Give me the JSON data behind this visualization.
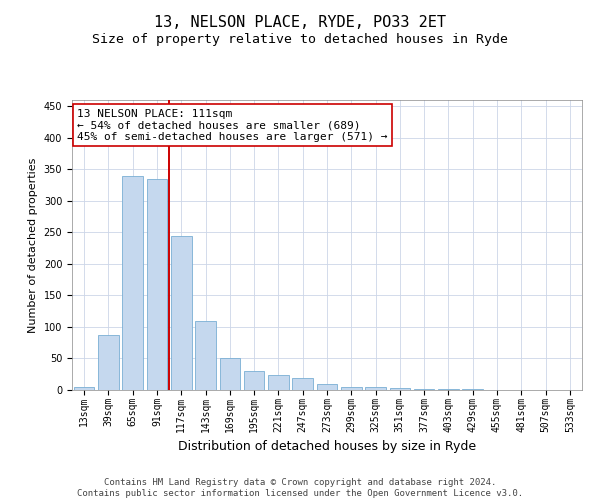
{
  "title": "13, NELSON PLACE, RYDE, PO33 2ET",
  "subtitle": "Size of property relative to detached houses in Ryde",
  "xlabel": "Distribution of detached houses by size in Ryde",
  "ylabel": "Number of detached properties",
  "categories": [
    "13sqm",
    "39sqm",
    "65sqm",
    "91sqm",
    "117sqm",
    "143sqm",
    "169sqm",
    "195sqm",
    "221sqm",
    "247sqm",
    "273sqm",
    "299sqm",
    "325sqm",
    "351sqm",
    "377sqm",
    "403sqm",
    "429sqm",
    "455sqm",
    "481sqm",
    "507sqm",
    "533sqm"
  ],
  "values": [
    5,
    88,
    340,
    335,
    245,
    110,
    50,
    30,
    24,
    19,
    9,
    5,
    4,
    3,
    2,
    1,
    1,
    0,
    0,
    0,
    0
  ],
  "bar_color": "#c5d8ee",
  "bar_edge_color": "#7aafd4",
  "vline_color": "#cc0000",
  "vline_x_index": 4,
  "annotation_text": "13 NELSON PLACE: 111sqm\n← 54% of detached houses are smaller (689)\n45% of semi-detached houses are larger (571) →",
  "annotation_box_facecolor": "#ffffff",
  "annotation_box_edgecolor": "#cc0000",
  "ylim": [
    0,
    460
  ],
  "yticks": [
    0,
    50,
    100,
    150,
    200,
    250,
    300,
    350,
    400,
    450
  ],
  "grid_color": "#ccd6e8",
  "background_color": "#ffffff",
  "footer_text": "Contains HM Land Registry data © Crown copyright and database right 2024.\nContains public sector information licensed under the Open Government Licence v3.0.",
  "title_fontsize": 11,
  "subtitle_fontsize": 9.5,
  "xlabel_fontsize": 9,
  "ylabel_fontsize": 8,
  "tick_fontsize": 7,
  "annotation_fontsize": 8,
  "footer_fontsize": 6.5
}
